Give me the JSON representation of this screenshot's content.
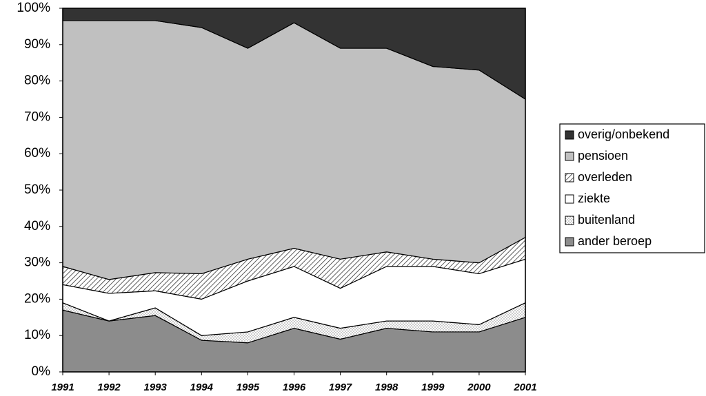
{
  "chart_data": {
    "type": "stacked_area",
    "x": [
      1991,
      1992,
      1993,
      1994,
      1995,
      1996,
      1997,
      1998,
      1999,
      2000,
      2001
    ],
    "xlim": [
      1991,
      2001
    ],
    "xticks": [
      1991,
      1992,
      1993,
      1994,
      1995,
      1996,
      1997,
      1998,
      1999,
      2000,
      2001
    ],
    "ylim": [
      0,
      100
    ],
    "yticks": [
      {
        "value": 0,
        "label": "0%"
      },
      {
        "value": 10,
        "label": "10%"
      },
      {
        "value": 20,
        "label": "20%"
      },
      {
        "value": 30,
        "label": "30%"
      },
      {
        "value": 40,
        "label": "40%"
      },
      {
        "value": 50,
        "label": "50%"
      },
      {
        "value": 60,
        "label": "60%"
      },
      {
        "value": 70,
        "label": "70%"
      },
      {
        "value": 80,
        "label": "80%"
      },
      {
        "value": 90,
        "label": "90%"
      },
      {
        "value": 100,
        "label": "100%"
      }
    ],
    "legend": "right",
    "series": [
      {
        "name": "ander beroep",
        "color": "#8c8c8c",
        "values": [
          17,
          14,
          15.5,
          8.7,
          8,
          12,
          9,
          12,
          11,
          11,
          15
        ]
      },
      {
        "name": "buitenland",
        "color": "#ffffff",
        "pattern": "dots",
        "values": [
          2,
          0,
          2.1,
          1.3,
          3,
          3,
          3,
          2,
          3,
          2,
          4
        ]
      },
      {
        "name": "ziekte",
        "color": "#ffffff",
        "values": [
          5,
          7.6,
          4.7,
          10,
          14,
          14,
          11,
          15,
          15,
          14,
          12
        ]
      },
      {
        "name": "overleden",
        "color": "#ffffff",
        "pattern": "hatch",
        "values": [
          5,
          3.8,
          5,
          7,
          6,
          5,
          8,
          4,
          2,
          3,
          6
        ]
      },
      {
        "name": "pensioen",
        "color": "#c0c0c0",
        "values": [
          67.6,
          71.2,
          69.3,
          67.7,
          58,
          62,
          58,
          56,
          53,
          53,
          38
        ]
      },
      {
        "name": "overig/onbekend",
        "color": "#333333",
        "values": [
          3.4,
          3.4,
          3.4,
          5.3,
          11,
          4,
          11,
          11,
          16,
          17,
          25
        ]
      }
    ]
  }
}
